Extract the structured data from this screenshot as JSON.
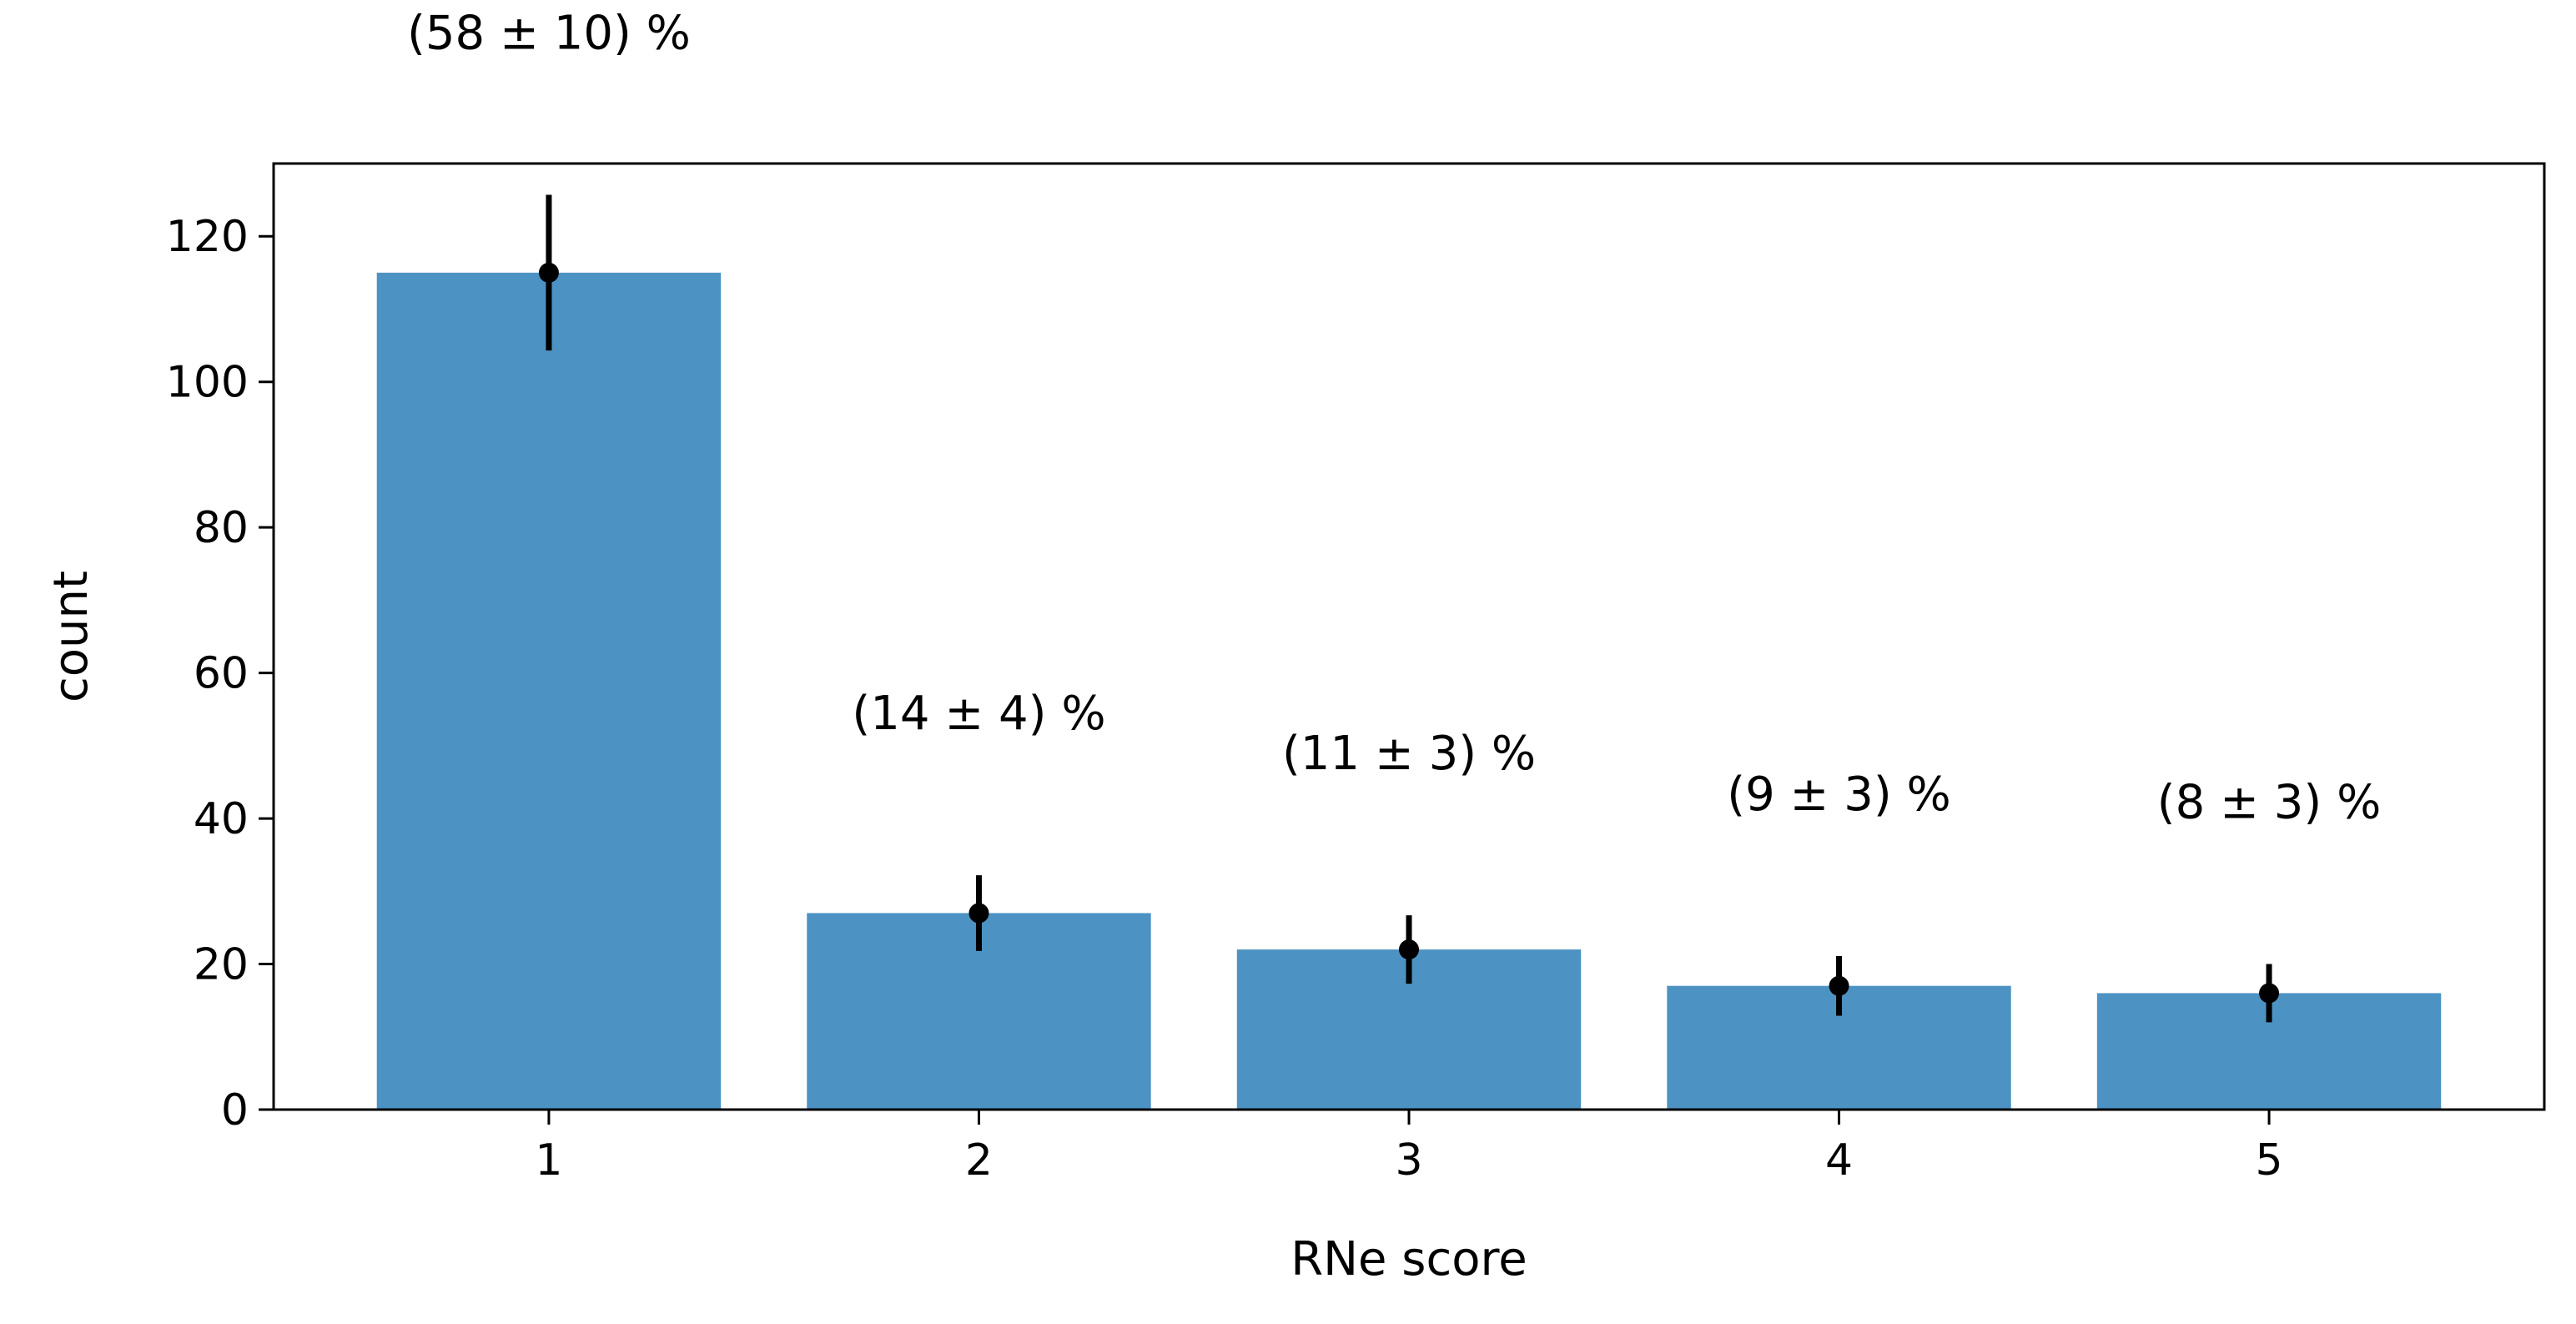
{
  "chart_data": {
    "type": "bar",
    "categories": [
      "1",
      "2",
      "3",
      "4",
      "5"
    ],
    "values": [
      115,
      27,
      22,
      17,
      16
    ],
    "errors": [
      10.7,
      5.2,
      4.7,
      4.1,
      4.0
    ],
    "annotations": [
      "(58 ± 10) %",
      "(14 ± 4) %",
      "(11 ± 3) %",
      "(9 ± 3) %",
      "(8 ± 3) %"
    ],
    "title": "",
    "xlabel": "RNe score",
    "ylabel": "count",
    "ylim": [
      0,
      130
    ],
    "yticks": [
      0,
      20,
      40,
      60,
      80,
      100,
      120
    ],
    "xticks": [
      "1",
      "2",
      "3",
      "4",
      "5"
    ],
    "grid": false,
    "colors": {
      "bar": "#4c92c3",
      "errorbar": "#000000",
      "axis": "#000000"
    }
  }
}
